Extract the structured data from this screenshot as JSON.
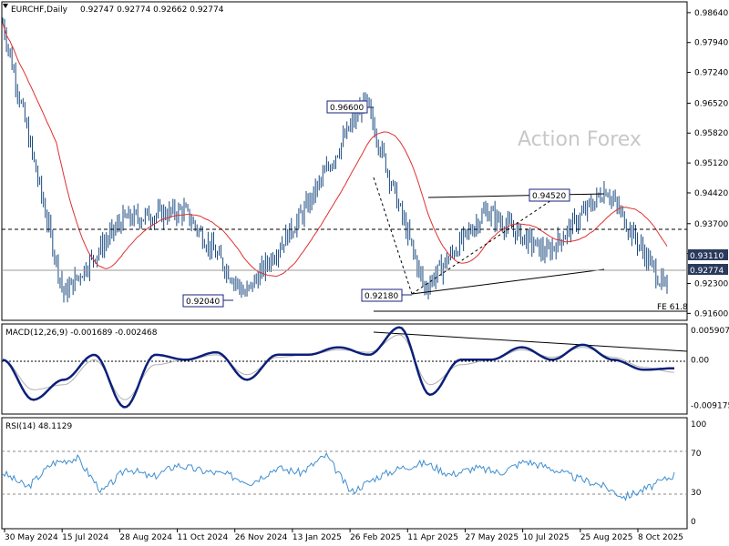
{
  "header": {
    "symbol": "EURCHF,Daily",
    "ohlc": "0.92747 0.92774 0.92662 0.92774"
  },
  "watermark": "Action Forex",
  "colors": {
    "candle": "#1a4a80",
    "ma": "#e03030",
    "macd": "#0b1f7a",
    "macd_signal": "#b0b0b0",
    "rsi": "#3f8fd0",
    "price_label_bg": "#2a3a5c",
    "annotation_border": "#1a237e",
    "trendline": "#000000"
  },
  "chart_data": [
    {
      "type": "candlestick",
      "name": "price",
      "y_ticks": [
        "0.98640",
        "0.97940",
        "0.97240",
        "0.96520",
        "0.95820",
        "0.95120",
        "0.94420",
        "0.93700",
        "0.93000",
        "0.92300",
        "0.91600"
      ],
      "ylim": [
        0.9148,
        0.9885
      ],
      "x_tick_labels": [
        "30 May 2024",
        "15 Jul 2024",
        "28 Aug 2024",
        "11 Oct 2024",
        "26 Nov 2024",
        "13 Jan 2025",
        "26 Feb 2025",
        "11 Apr 2025",
        "27 May 2025",
        "10 Jul 2025",
        "25 Aug 2025",
        "8 Oct 2025"
      ],
      "ma_label_none": "",
      "annotations": [
        {
          "text": "0.96600",
          "value": 0.966
        },
        {
          "text": "0.94520",
          "value": 0.9452
        },
        {
          "text": "0.92040",
          "value": 0.9204
        },
        {
          "text": "0.92180",
          "value": 0.9218
        },
        {
          "text": "FE 61.8",
          "value": 0.9178
        }
      ],
      "current_labels": [
        {
          "text": "0.93110",
          "value": 0.9311
        },
        {
          "text": "0.92774",
          "value": 0.92774
        }
      ],
      "key_points": [
        {
          "x": "30 May 2024",
          "y": 0.984
        },
        {
          "x": "15 Jul 2024",
          "y": 0.9204
        },
        {
          "x": "28 Aug 2024",
          "y": 0.938
        },
        {
          "x": "11 Oct 2024",
          "y": 0.94
        },
        {
          "x": "26 Nov 2024",
          "y": 0.9204
        },
        {
          "x": "13 Jan 2025",
          "y": 0.94
        },
        {
          "x": "26 Feb 2025",
          "y": 0.966
        },
        {
          "x": "11 Apr 2025",
          "y": 0.9218
        },
        {
          "x": "27 May 2025",
          "y": 0.94
        },
        {
          "x": "10 Jul 2025",
          "y": 0.93
        },
        {
          "x": "25 Aug 2025",
          "y": 0.9452
        },
        {
          "x": "8 Oct 2025",
          "y": 0.921
        }
      ]
    },
    {
      "type": "line",
      "name": "MACD(12,26,9)",
      "label": "MACD(12,26,9) -0.001689 -0.002468",
      "y_ticks": [
        "0.005907",
        "0.00",
        "-0.009175"
      ],
      "ylim": [
        -0.0105,
        0.0068
      ],
      "series": [
        {
          "name": "macd",
          "values": [
            0.0,
            -0.008,
            -0.004,
            0.001,
            -0.0095,
            0.001,
            0.0,
            0.0015,
            -0.004,
            0.001,
            0.001,
            0.0025,
            0.001,
            0.0065,
            -0.007,
            0.0,
            0.0,
            0.0025,
            0.0,
            0.003,
            0.0,
            -0.002,
            -0.0017
          ]
        },
        {
          "name": "signal",
          "values": [
            0.0,
            -0.006,
            -0.005,
            0.0,
            -0.008,
            -0.001,
            0.0,
            0.001,
            -0.003,
            0.0005,
            0.001,
            0.002,
            0.0015,
            0.005,
            -0.005,
            -0.001,
            0.0,
            0.002,
            0.0005,
            0.0025,
            0.0005,
            -0.0015,
            -0.0025
          ]
        }
      ]
    },
    {
      "type": "line",
      "name": "RSI(14)",
      "label": "RSI(14) 48.1129",
      "y_ticks": [
        "100",
        "70",
        "30",
        "0"
      ],
      "ylim": [
        0,
        100
      ],
      "series": [
        {
          "name": "rsi",
          "values": [
            50,
            35,
            60,
            65,
            30,
            55,
            45,
            58,
            52,
            48,
            40,
            55,
            50,
            68,
            30,
            45,
            55,
            60,
            48,
            55,
            50,
            62,
            55,
            45,
            38,
            25,
            35,
            48
          ]
        }
      ]
    }
  ]
}
